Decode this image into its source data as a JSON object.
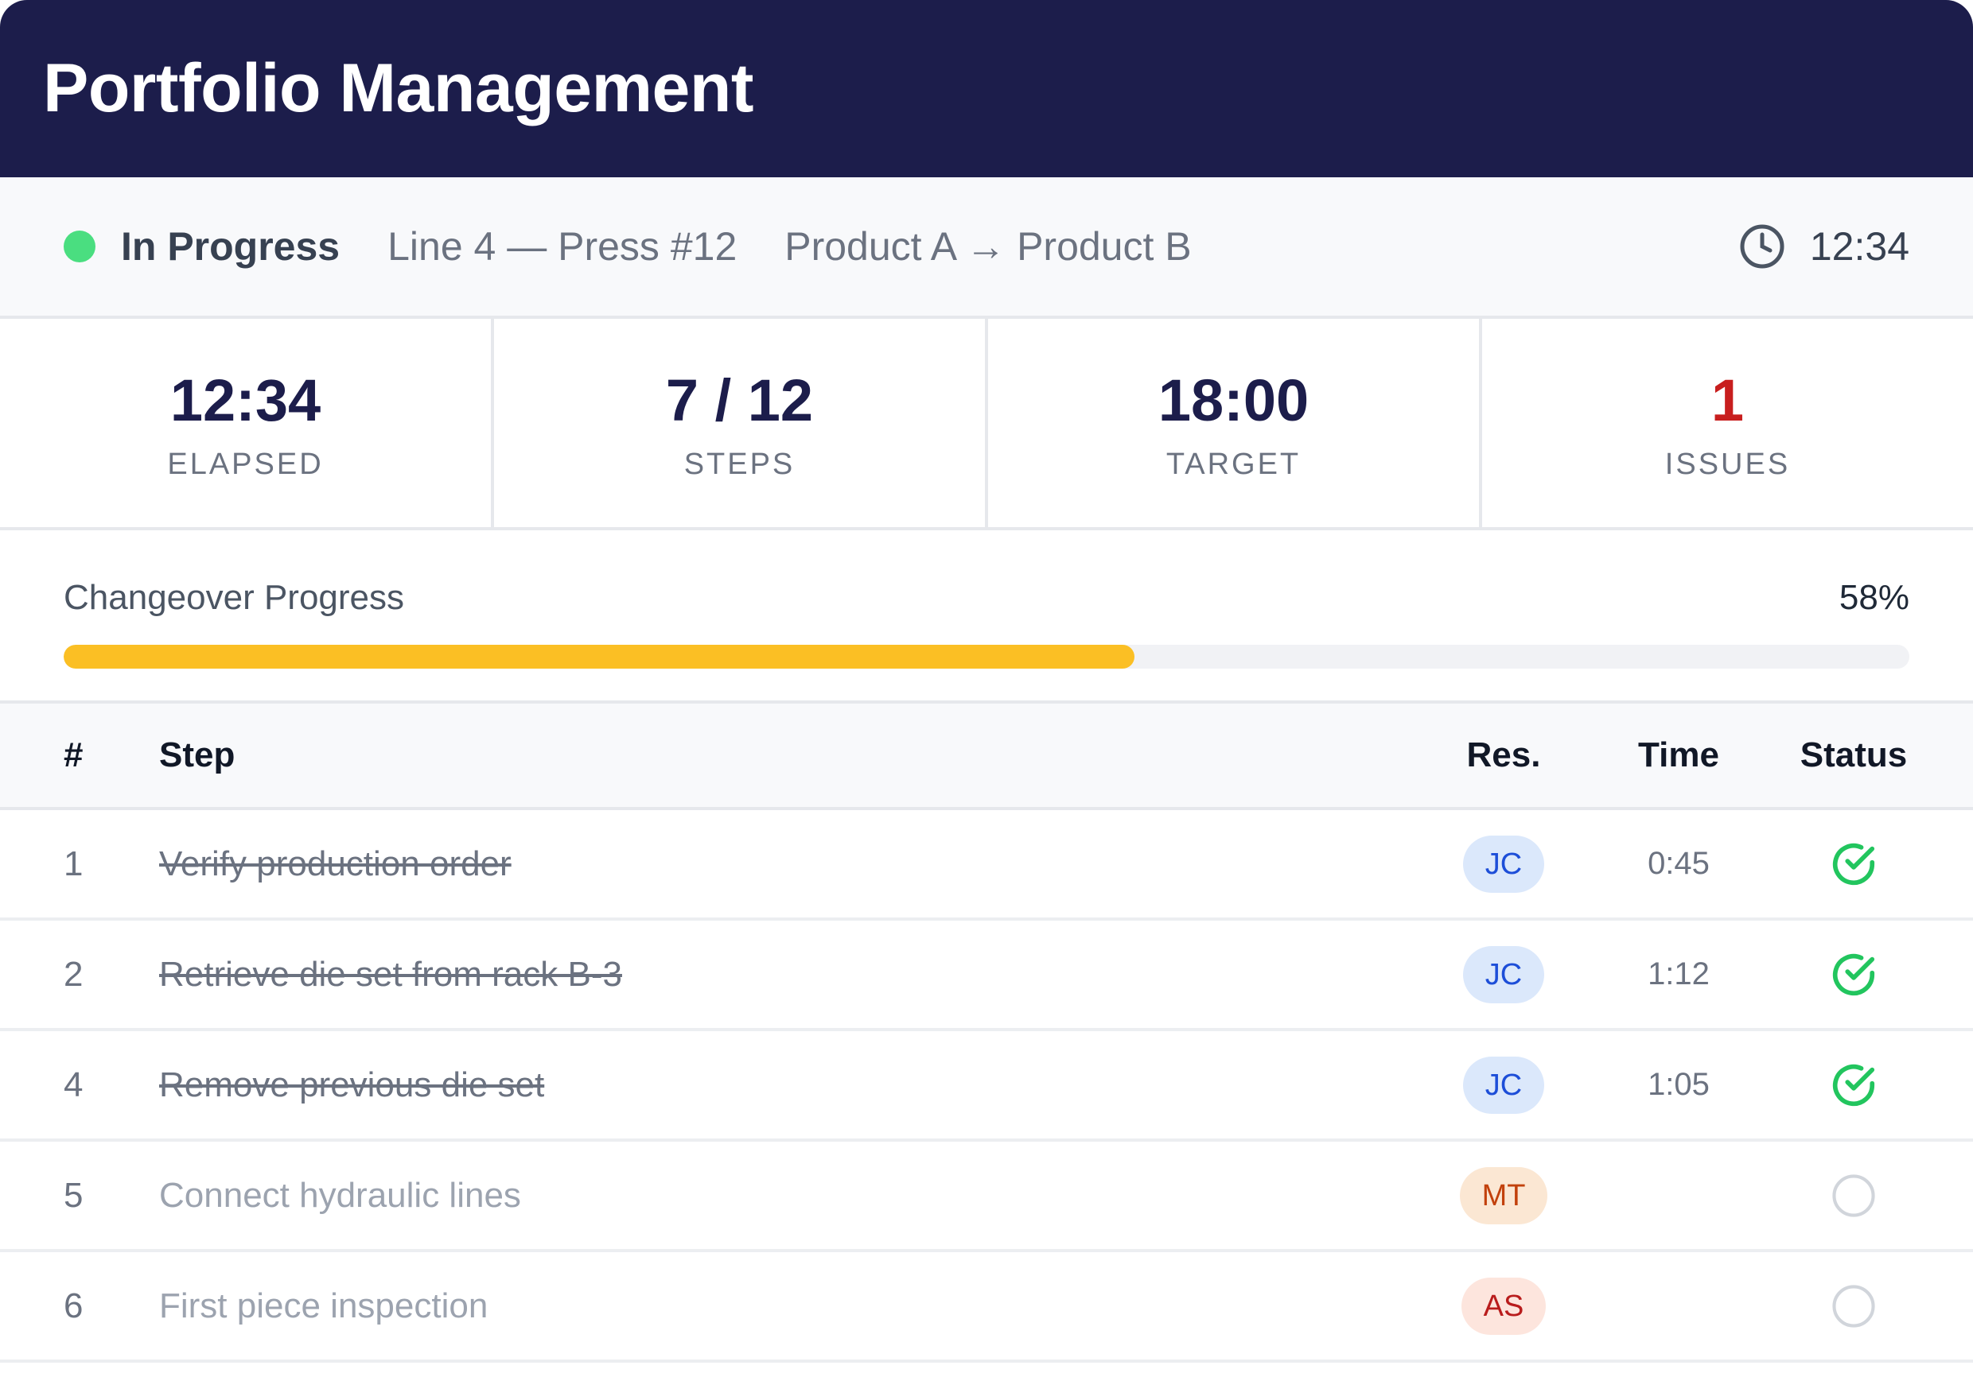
{
  "header": {
    "title": "Portfolio Management"
  },
  "statusbar": {
    "status_label": "In Progress",
    "status_color": "#4ade80",
    "line": "Line 4 — Press #12",
    "transition": "Product A → Product B",
    "clock_icon": "clock-icon",
    "time": "12:34"
  },
  "metrics": [
    {
      "value": "12:34",
      "label": "ELAPSED"
    },
    {
      "value": "7 / 12",
      "label": "STEPS"
    },
    {
      "value": "18:00",
      "label": "TARGET"
    },
    {
      "value": "1",
      "label": "ISSUES",
      "color": "#c81e1e"
    }
  ],
  "progress": {
    "title": "Changeover Progress",
    "percent_label": "58%",
    "percent": 58,
    "fill_color": "#fbbf24"
  },
  "table": {
    "headers": {
      "num": "#",
      "step": "Step",
      "res": "Res.",
      "time": "Time",
      "status": "Status"
    },
    "rows": [
      {
        "num": "1",
        "step": "Verify production order",
        "res": "JC",
        "time": "0:45",
        "done": true
      },
      {
        "num": "2",
        "step": "Retrieve die set from rack B-3",
        "res": "JC",
        "time": "1:12",
        "done": true
      },
      {
        "num": "4",
        "step": "Remove previous die set",
        "res": "JC",
        "time": "1:05",
        "done": true
      },
      {
        "num": "5",
        "step": "Connect hydraulic lines",
        "res": "MT",
        "time": "",
        "done": false
      },
      {
        "num": "6",
        "step": "First piece inspection",
        "res": "AS",
        "time": "",
        "done": false
      }
    ]
  },
  "colors": {
    "header_bg": "#1c1d4b",
    "done_check": "#22c55e",
    "pending_circle": "#d1d5db"
  }
}
